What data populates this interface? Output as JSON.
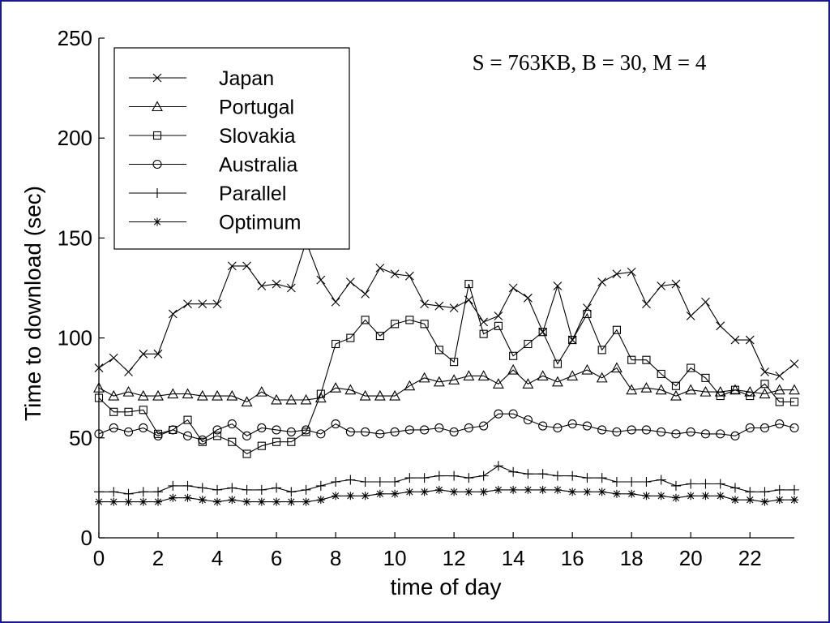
{
  "chart_data": {
    "type": "line",
    "title": "",
    "subtitle": "S = 763KB, B = 30, M = 4",
    "xlabel": "time of day",
    "ylabel": "Time to download (sec)",
    "xlim": [
      0,
      23.5
    ],
    "ylim": [
      0,
      250
    ],
    "x_ticks": [
      "0",
      "2",
      "4",
      "6",
      "8",
      "10",
      "12",
      "14",
      "16",
      "18",
      "20",
      "22"
    ],
    "y_ticks": [
      "0",
      "50",
      "100",
      "150",
      "200",
      "250"
    ],
    "grid": false,
    "legend_position": "top-left",
    "x": [
      0,
      0.5,
      1,
      1.5,
      2,
      2.5,
      3,
      3.5,
      4,
      4.5,
      5,
      5.5,
      6,
      6.5,
      7,
      7.5,
      8,
      8.5,
      9,
      9.5,
      10,
      10.5,
      11,
      11.5,
      12,
      12.5,
      13,
      13.5,
      14,
      14.5,
      15,
      15.5,
      16,
      16.5,
      17,
      17.5,
      18,
      18.5,
      19,
      19.5,
      20,
      20.5,
      21,
      21.5,
      22,
      22.5,
      23,
      23.5
    ],
    "series": [
      {
        "name": "Japan",
        "marker": "x",
        "values": [
          85,
          90,
          83,
          92,
          92,
          112,
          117,
          117,
          117,
          136,
          136,
          126,
          127,
          125,
          148,
          129,
          118,
          128,
          122,
          135,
          132,
          131,
          117,
          116,
          115,
          119,
          108,
          111,
          125,
          120,
          103,
          126,
          99,
          115,
          128,
          132,
          133,
          117,
          126,
          127,
          111,
          118,
          106,
          99,
          99,
          83,
          81,
          87
        ]
      },
      {
        "name": "Portugal",
        "marker": "triangle",
        "values": [
          75,
          71,
          73,
          71,
          71,
          72,
          72,
          71,
          71,
          71,
          68,
          73,
          69,
          69,
          69,
          70,
          75,
          74,
          71,
          71,
          71,
          76,
          80,
          78,
          79,
          81,
          81,
          77,
          84,
          77,
          81,
          78,
          81,
          84,
          80,
          85,
          74,
          75,
          74,
          71,
          74,
          73,
          73,
          74,
          73,
          72,
          74,
          74
        ]
      },
      {
        "name": "Slovakia",
        "marker": "square",
        "values": [
          70,
          63,
          63,
          64,
          52,
          54,
          59,
          48,
          51,
          48,
          42,
          46,
          48,
          48,
          53,
          72,
          97,
          100,
          109,
          101,
          107,
          109,
          107,
          94,
          88,
          127,
          102,
          106,
          91,
          97,
          103,
          87,
          99,
          112,
          94,
          104,
          89,
          89,
          82,
          76,
          85,
          80,
          71,
          74,
          71,
          77,
          68,
          68
        ]
      },
      {
        "name": "Australia",
        "marker": "circle",
        "values": [
          52,
          55,
          53,
          55,
          51,
          54,
          51,
          49,
          54,
          57,
          51,
          55,
          54,
          53,
          54,
          52,
          57,
          53,
          53,
          52,
          53,
          54,
          54,
          55,
          53,
          55,
          56,
          62,
          62,
          59,
          56,
          55,
          57,
          56,
          54,
          53,
          54,
          54,
          53,
          52,
          53,
          52,
          52,
          51,
          55,
          55,
          57,
          55
        ]
      },
      {
        "name": "Parallel",
        "marker": "plus",
        "values": [
          23,
          23,
          22,
          23,
          23,
          26,
          26,
          25,
          24,
          25,
          24,
          24,
          25,
          23,
          24,
          26,
          28,
          29,
          28,
          28,
          28,
          30,
          30,
          31,
          31,
          30,
          31,
          36,
          33,
          32,
          32,
          31,
          31,
          30,
          30,
          28,
          28,
          28,
          29,
          26,
          27,
          27,
          27,
          25,
          23,
          23,
          24,
          24
        ]
      },
      {
        "name": "Optimum",
        "marker": "star",
        "values": [
          18,
          18,
          18,
          18,
          18,
          20,
          20,
          19,
          18,
          19,
          18,
          18,
          18,
          18,
          18,
          19,
          21,
          21,
          21,
          22,
          22,
          23,
          23,
          24,
          23,
          23,
          23,
          24,
          24,
          24,
          24,
          24,
          23,
          23,
          23,
          22,
          22,
          21,
          21,
          20,
          21,
          21,
          21,
          19,
          19,
          18,
          19,
          19
        ]
      }
    ]
  }
}
